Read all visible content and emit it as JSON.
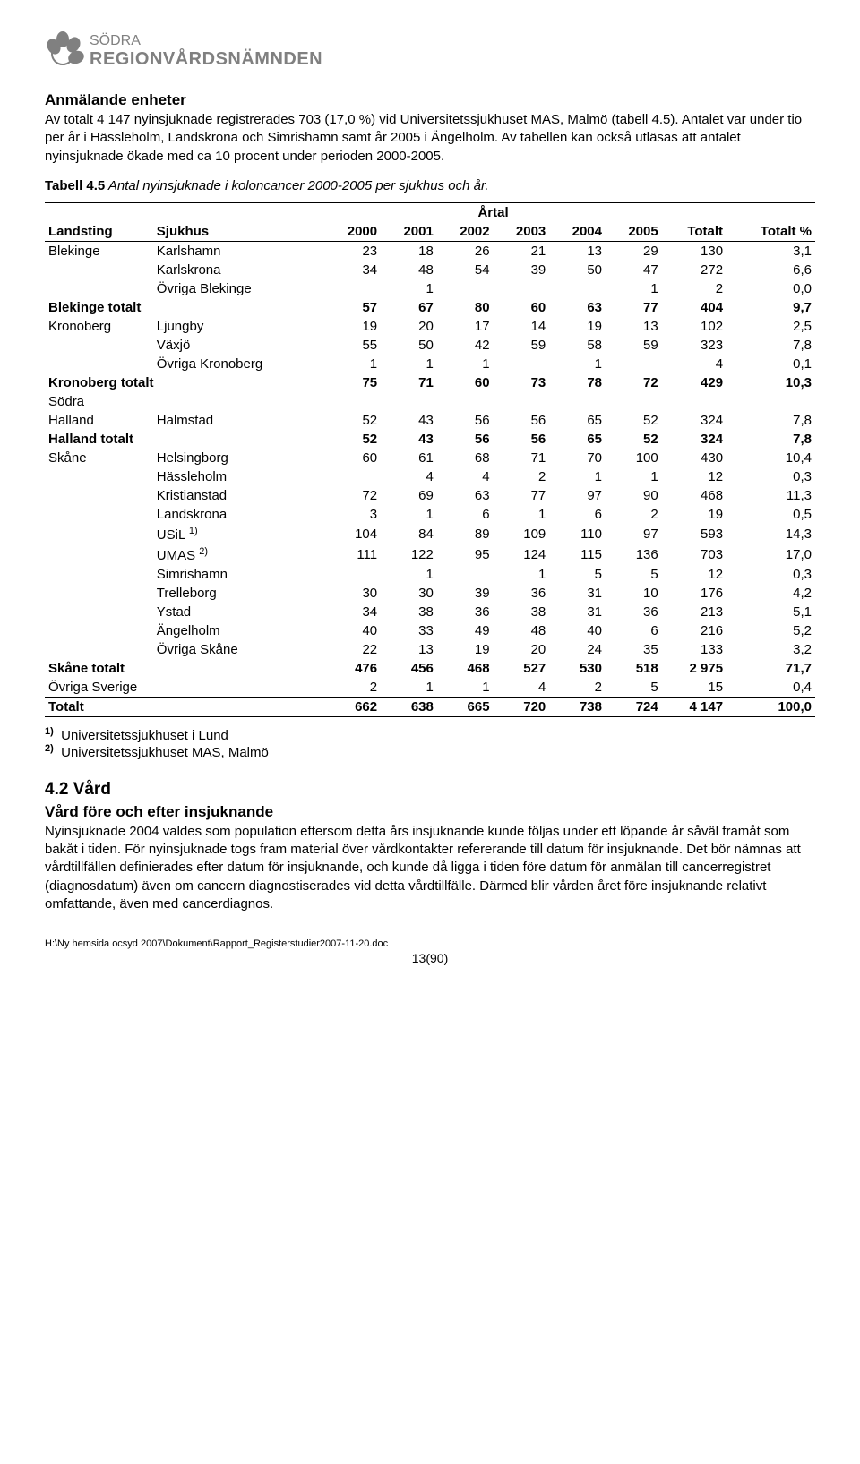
{
  "logo": {
    "top": "SÖDRA",
    "bottom": "REGIONVÅRDSNÄMNDEN"
  },
  "intro": {
    "heading": "Anmälande enheter",
    "para": "Av totalt 4 147 nyinsjuknade registrerades 703 (17,0 %) vid Universitetssjukhuset MAS, Malmö (tabell 4.5). Antalet var under tio per år i Hässleholm, Landskrona och Simrishamn samt år 2005 i Ängelholm. Av tabellen kan också utläsas att antalet nyinsjuknade ökade med ca 10 procent under perioden 2000-2005."
  },
  "caption": {
    "label": "Tabell 4.5",
    "text": " Antal nyinsjuknade i koloncancer 2000-2005 per sjukhus och år."
  },
  "table": {
    "artal": "Årtal",
    "headers": [
      "Landsting",
      "Sjukhus",
      "2000",
      "2001",
      "2002",
      "2003",
      "2004",
      "2005",
      "Totalt",
      "Totalt %"
    ],
    "rows": [
      {
        "l": "Blekinge",
        "s": "Karlshamn",
        "v": [
          "23",
          "18",
          "26",
          "21",
          "13",
          "29",
          "130",
          "3,1"
        ],
        "top": true
      },
      {
        "l": "",
        "s": "Karlskrona",
        "v": [
          "34",
          "48",
          "54",
          "39",
          "50",
          "47",
          "272",
          "6,6"
        ]
      },
      {
        "l": "",
        "s": "Övriga Blekinge",
        "v": [
          "",
          "1",
          "",
          "",
          "",
          "1",
          "2",
          "0,0"
        ]
      },
      {
        "l": "Blekinge totalt",
        "s": "",
        "v": [
          "57",
          "67",
          "80",
          "60",
          "63",
          "77",
          "404",
          "9,7"
        ],
        "bold": true,
        "span": true
      },
      {
        "l": "Kronoberg",
        "s": "Ljungby",
        "v": [
          "19",
          "20",
          "17",
          "14",
          "19",
          "13",
          "102",
          "2,5"
        ],
        "gap": true
      },
      {
        "l": "",
        "s": "Växjö",
        "v": [
          "55",
          "50",
          "42",
          "59",
          "58",
          "59",
          "323",
          "7,8"
        ]
      },
      {
        "l": "",
        "s": "Övriga Kronoberg",
        "v": [
          "1",
          "1",
          "1",
          "",
          "1",
          "",
          "4",
          "0,1"
        ]
      },
      {
        "l": "Kronoberg totalt",
        "s": "",
        "v": [
          "75",
          "71",
          "60",
          "73",
          "78",
          "72",
          "429",
          "10,3"
        ],
        "bold": true,
        "span": true
      },
      {
        "l": "Södra",
        "s": "",
        "v": [
          "",
          "",
          "",
          "",
          "",
          "",
          "",
          ""
        ],
        "gap": true
      },
      {
        "l": "Halland",
        "s": "Halmstad",
        "v": [
          "52",
          "43",
          "56",
          "56",
          "65",
          "52",
          "324",
          "7,8"
        ]
      },
      {
        "l": "Halland totalt",
        "s": "",
        "v": [
          "52",
          "43",
          "56",
          "56",
          "65",
          "52",
          "324",
          "7,8"
        ],
        "bold": true,
        "span": true
      },
      {
        "l": "Skåne",
        "s": "Helsingborg",
        "v": [
          "60",
          "61",
          "68",
          "71",
          "70",
          "100",
          "430",
          "10,4"
        ],
        "gap": true
      },
      {
        "l": "",
        "s": "Hässleholm",
        "v": [
          "",
          "4",
          "4",
          "2",
          "1",
          "1",
          "12",
          "0,3"
        ]
      },
      {
        "l": "",
        "s": "Kristianstad",
        "v": [
          "72",
          "69",
          "63",
          "77",
          "97",
          "90",
          "468",
          "11,3"
        ]
      },
      {
        "l": "",
        "s": "Landskrona",
        "v": [
          "3",
          "1",
          "6",
          "1",
          "6",
          "2",
          "19",
          "0,5"
        ]
      },
      {
        "l": "",
        "s": "USiL",
        "sup": "1)",
        "v": [
          "104",
          "84",
          "89",
          "109",
          "110",
          "97",
          "593",
          "14,3"
        ]
      },
      {
        "l": "",
        "s": "UMAS",
        "sup": "2)",
        "v": [
          "111",
          "122",
          "95",
          "124",
          "115",
          "136",
          "703",
          "17,0"
        ]
      },
      {
        "l": "",
        "s": "Simrishamn",
        "v": [
          "",
          "1",
          "",
          "1",
          "5",
          "5",
          "12",
          "0,3"
        ]
      },
      {
        "l": "",
        "s": "Trelleborg",
        "v": [
          "30",
          "30",
          "39",
          "36",
          "31",
          "10",
          "176",
          "4,2"
        ]
      },
      {
        "l": "",
        "s": "Ystad",
        "v": [
          "34",
          "38",
          "36",
          "38",
          "31",
          "36",
          "213",
          "5,1"
        ]
      },
      {
        "l": "",
        "s": "Ängelholm",
        "v": [
          "40",
          "33",
          "49",
          "48",
          "40",
          "6",
          "216",
          "5,2"
        ]
      },
      {
        "l": "",
        "s": "Övriga Skåne",
        "v": [
          "22",
          "13",
          "19",
          "20",
          "24",
          "35",
          "133",
          "3,2"
        ]
      },
      {
        "l": "Skåne totalt",
        "s": "",
        "v": [
          "476",
          "456",
          "468",
          "527",
          "530",
          "518",
          "2 975",
          "71,7"
        ],
        "bold": true,
        "span": true
      },
      {
        "l": "Övriga Sverige",
        "s": "",
        "v": [
          "2",
          "1",
          "1",
          "4",
          "2",
          "5",
          "15",
          "0,4"
        ],
        "gap": true,
        "span": true,
        "bot": true
      },
      {
        "l": "Totalt",
        "s": "",
        "v": [
          "662",
          "638",
          "665",
          "720",
          "738",
          "724",
          "4 147",
          "100,0"
        ],
        "bold": true,
        "gap": true,
        "span": true,
        "bot": true
      }
    ]
  },
  "footnotes": [
    {
      "n": "1)",
      "t": "Universitetssjukhuset i Lund"
    },
    {
      "n": "2)",
      "t": "Universitetssjukhuset MAS, Malmö"
    }
  ],
  "section2": {
    "heading": "4.2  Vård",
    "subheading": "Vård före och efter insjuknande",
    "para": "Nyinsjuknade 2004 valdes som population eftersom detta års insjuknande kunde följas under ett löpande år såväl framåt som bakåt i tiden. För nyinsjuknade togs fram material över vårdkontakter refererande till datum för insjuknande. Det bör nämnas att vårdtillfällen definierades efter datum för insjuknande, och kunde då ligga i tiden före datum för anmälan till cancerregistret (diagnosdatum) även om cancern diagnostiserades vid detta vårdtillfälle. Därmed blir vården året före insjuknande relativt omfattande, även med cancerdiagnos."
  },
  "footer": {
    "path": "H:\\Ny hemsida ocsyd 2007\\Dokument\\Rapport_Registerstudier2007-11-20.doc",
    "page": "13(90)"
  }
}
